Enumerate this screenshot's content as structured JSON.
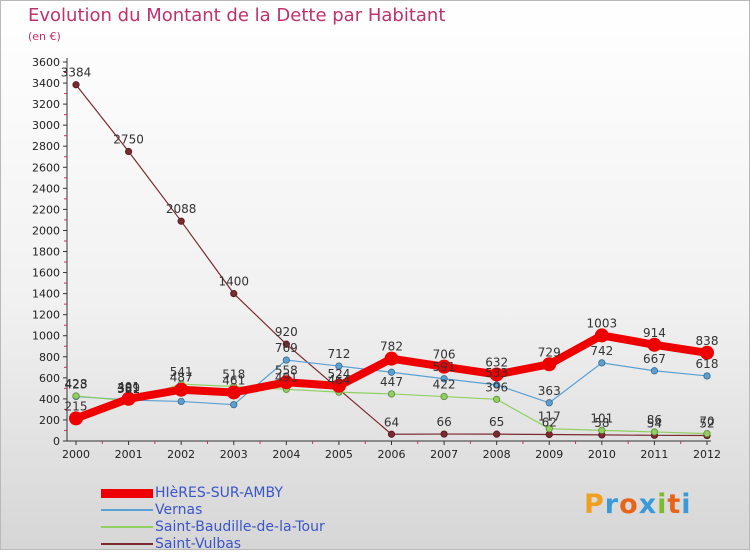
{
  "title": "Evolution du Montant de la Dette par Habitant",
  "subtitle": "(en €)",
  "logo": {
    "letters": [
      "P",
      "r",
      "o",
      "x",
      "i",
      "t",
      "i"
    ],
    "colors": [
      "#f0a020",
      "#3a9ad9",
      "#e8641b",
      "#3a9ad9",
      "#7dbb2a",
      "#e8641b",
      "#3a9ad9"
    ]
  },
  "chart_data": {
    "type": "line",
    "x": [
      "2000",
      "2001",
      "2002",
      "2003",
      "2004",
      "2005",
      "2006",
      "2007",
      "2008",
      "2009",
      "2010",
      "2011",
      "2012"
    ],
    "ylim": [
      0,
      3600
    ],
    "yticks": [
      "0",
      "200",
      "400",
      "600",
      "800",
      "1000",
      "1200",
      "1400",
      "1600",
      "1800",
      "2000",
      "2200",
      "2400",
      "2600",
      "2800",
      "3000",
      "3200",
      "3400",
      "3600"
    ],
    "grid": false,
    "legend_position": "bottom-left",
    "series": [
      {
        "name": "HIèRES-SUR-AMBY",
        "values": [
          215,
          401,
          487,
          461,
          558,
          524,
          782,
          706,
          632,
          729,
          1003,
          914,
          838
        ],
        "labels": [
          "215",
          "401",
          "487",
          "461",
          "558",
          "524",
          "782",
          "706",
          "632",
          "729",
          "1003",
          "914",
          "838"
        ],
        "color": "#ee0000",
        "width": 8,
        "marker": 7
      },
      {
        "name": "Vernas",
        "values": [
          423,
          389,
          376,
          345,
          769,
          712,
          653,
          591,
          533,
          363,
          742,
          667,
          618
        ],
        "labels": [
          "423",
          "389",
          "",
          "",
          "769",
          "712",
          "",
          "591",
          "533",
          "363",
          "742",
          "667",
          "618"
        ],
        "color": "#5aa0d2",
        "width": 1.2,
        "marker": 3.2
      },
      {
        "name": "Saint-Baudille-de-la-Tour",
        "values": [
          428,
          381,
          541,
          518,
          491,
          464,
          447,
          422,
          396,
          117,
          101,
          86,
          70
        ],
        "labels": [
          "428",
          "381",
          "541",
          "518",
          "491",
          "464",
          "447",
          "422",
          "396",
          "117",
          "101",
          "86",
          "70"
        ],
        "color": "#90d060",
        "width": 1.2,
        "marker": 3.2
      },
      {
        "name": "Saint-Vulbas",
        "values": [
          3384,
          2750,
          2088,
          1400,
          920,
          491,
          64,
          66,
          65,
          62,
          58,
          54,
          52
        ],
        "labels": [
          "3384",
          "2750",
          "2088",
          "1400",
          "920",
          "",
          "64",
          "66",
          "65",
          "62",
          "58",
          "54",
          "52"
        ],
        "color": "#7a2a30",
        "width": 1.2,
        "marker": 3.2
      }
    ]
  }
}
